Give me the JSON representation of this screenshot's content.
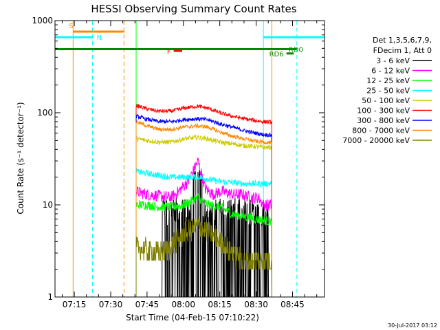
{
  "chart_data": {
    "type": "line",
    "title": "HESSI Observing Summary Count Rates",
    "xlabel": "Start Time (04-Feb-15 07:10:22)",
    "ylabel": "Count Rate (s⁻¹ detector⁻¹)",
    "yscale": "log",
    "ylim": [
      1,
      1000
    ],
    "xlim_minutes": [
      7.03,
      118.2
    ],
    "x_ticks": [
      {
        "label": "07:15",
        "minute": 15
      },
      {
        "label": "07:30",
        "minute": 30
      },
      {
        "label": "07:45",
        "minute": 45
      },
      {
        "label": "08:00",
        "minute": 60
      },
      {
        "label": "08:15",
        "minute": 75
      },
      {
        "label": "08:30",
        "minute": 90
      },
      {
        "label": "08:45",
        "minute": 105
      }
    ],
    "y_ticks": [
      "1",
      "10",
      "100",
      "1000"
    ],
    "legend_header": [
      "Det 1,3,5,6,7,9,",
      "FDecim 1, Att 0"
    ],
    "legend_placement": "right",
    "data_interval_minutes": [
      40.5,
      96.5
    ],
    "series": [
      {
        "name": "3 - 6 keV",
        "color": "#000000",
        "approx": [
          [
            40.5,
            0.5
          ],
          [
            55,
            0.5
          ],
          [
            58,
            0.5
          ],
          [
            63,
            0.5
          ],
          [
            66,
            0.5
          ],
          [
            69,
            0.5
          ],
          [
            72,
            0.5
          ],
          [
            80,
            0.5
          ],
          [
            88,
            0.5
          ],
          [
            91,
            0.5
          ],
          [
            93,
            0.5
          ],
          [
            96.5,
            0.5
          ]
        ]
      },
      {
        "name": "6 - 12 keV",
        "color": "#ff00ff",
        "approx": [
          [
            40.5,
            14
          ],
          [
            45,
            13
          ],
          [
            50,
            12.5
          ],
          [
            55,
            12
          ],
          [
            58,
            14
          ],
          [
            62,
            18
          ],
          [
            66,
            30
          ],
          [
            69,
            15
          ],
          [
            72,
            13
          ],
          [
            76,
            14
          ],
          [
            80,
            13
          ],
          [
            84,
            13
          ],
          [
            88,
            12
          ],
          [
            91,
            12
          ],
          [
            93,
            10
          ],
          [
            96.5,
            10
          ]
        ]
      },
      {
        "name": "12 - 25 keV",
        "color": "#00ff00",
        "approx": [
          [
            40.5,
            10
          ],
          [
            45,
            10
          ],
          [
            50,
            9.5
          ],
          [
            55,
            9.5
          ],
          [
            60,
            10
          ],
          [
            66,
            12
          ],
          [
            70,
            10
          ],
          [
            75,
            9.5
          ],
          [
            80,
            8
          ],
          [
            85,
            7.5
          ],
          [
            90,
            7
          ],
          [
            93,
            6.8
          ],
          [
            96.5,
            6.6
          ]
        ]
      },
      {
        "name": "25 - 50 keV",
        "color": "#00ffff",
        "approx": [
          [
            40.5,
            23
          ],
          [
            45,
            22
          ],
          [
            50,
            21
          ],
          [
            55,
            20
          ],
          [
            60,
            20
          ],
          [
            66,
            20
          ],
          [
            70,
            19
          ],
          [
            75,
            18
          ],
          [
            80,
            17.5
          ],
          [
            85,
            17
          ],
          [
            90,
            17
          ],
          [
            93,
            17
          ],
          [
            96.5,
            17
          ]
        ]
      },
      {
        "name": "50 - 100 keV",
        "color": "#cccc00",
        "approx": [
          [
            40.5,
            52
          ],
          [
            45,
            50
          ],
          [
            50,
            48
          ],
          [
            55,
            48
          ],
          [
            60,
            52
          ],
          [
            66,
            54
          ],
          [
            70,
            52
          ],
          [
            75,
            48
          ],
          [
            80,
            46
          ],
          [
            85,
            44
          ],
          [
            90,
            43
          ],
          [
            93,
            42
          ],
          [
            96.5,
            42
          ]
        ]
      },
      {
        "name": "100 - 300 keV",
        "color": "#ff0000",
        "approx": [
          [
            40.5,
            120
          ],
          [
            45,
            110
          ],
          [
            50,
            104
          ],
          [
            55,
            104
          ],
          [
            60,
            112
          ],
          [
            66,
            118
          ],
          [
            70,
            112
          ],
          [
            75,
            100
          ],
          [
            80,
            92
          ],
          [
            85,
            86
          ],
          [
            90,
            82
          ],
          [
            93,
            80
          ],
          [
            96.5,
            79
          ]
        ]
      },
      {
        "name": "300 - 800 keV",
        "color": "#0000ff",
        "approx": [
          [
            40.5,
            92
          ],
          [
            45,
            85
          ],
          [
            50,
            80
          ],
          [
            55,
            80
          ],
          [
            60,
            84
          ],
          [
            66,
            86
          ],
          [
            70,
            84
          ],
          [
            75,
            76
          ],
          [
            80,
            70
          ],
          [
            85,
            64
          ],
          [
            90,
            60
          ],
          [
            93,
            58
          ],
          [
            96.5,
            57
          ]
        ]
      },
      {
        "name": "800 - 7000 keV",
        "color": "#ff8800",
        "approx": [
          [
            40.5,
            80
          ],
          [
            45,
            72
          ],
          [
            50,
            66
          ],
          [
            55,
            66
          ],
          [
            60,
            70
          ],
          [
            66,
            72
          ],
          [
            70,
            70
          ],
          [
            75,
            62
          ],
          [
            80,
            56
          ],
          [
            85,
            52
          ],
          [
            90,
            49
          ],
          [
            93,
            48
          ],
          [
            96.5,
            47
          ]
        ]
      },
      {
        "name": "7000 - 20000 keV",
        "color": "#808000",
        "approx": [
          [
            40.5,
            3.5
          ],
          [
            45,
            3.2
          ],
          [
            50,
            3.0
          ],
          [
            55,
            3.6
          ],
          [
            60,
            4.8
          ],
          [
            66,
            6
          ],
          [
            70,
            5
          ],
          [
            75,
            4
          ],
          [
            80,
            3
          ],
          [
            85,
            2.5
          ],
          [
            90,
            2.5
          ],
          [
            93,
            2.5
          ],
          [
            96.5,
            2.5
          ]
        ]
      }
    ],
    "annotations": [
      {
        "label": "S",
        "color": "#ff8800"
      },
      {
        "label": "N",
        "color": "#00ffff"
      },
      {
        "label": "F",
        "color": "#ff0000"
      },
      {
        "label": "RD0",
        "color": "#008800"
      },
      {
        "label": "RD6",
        "color": "#008800"
      }
    ],
    "markers": [
      {
        "kind": "vertical-solid",
        "minute": 14.5,
        "color": "#ff8800"
      },
      {
        "kind": "vertical-dashed",
        "minute": 22.5,
        "color": "#00ffff"
      },
      {
        "kind": "vertical-dashed",
        "minute": 35.5,
        "color": "#ff8800"
      },
      {
        "kind": "vertical-solid",
        "minute": 40.5,
        "color": "#00ff00"
      },
      {
        "kind": "vertical-solid",
        "minute": 93.0,
        "color": "#00ffff"
      },
      {
        "kind": "vertical-dashed",
        "minute": 106.8,
        "color": "#00ffff"
      },
      {
        "kind": "vertical-solid",
        "minute": 96.5,
        "color": "#ff8800"
      }
    ],
    "bars": [
      {
        "kind": "saa-night",
        "label": "N",
        "color": "#00ffff",
        "from_minute": 7.03,
        "to_minute": 22.5,
        "level": 660
      },
      {
        "kind": "saa-night",
        "label": "N",
        "color": "#00ffff",
        "from_minute": 93.0,
        "to_minute": 118.2,
        "level": 660
      },
      {
        "kind": "saa",
        "label": "S",
        "color": "#ff8800",
        "from_minute": 14.5,
        "to_minute": 35.5,
        "level": 760
      },
      {
        "kind": "flare",
        "label": "F",
        "color": "#ff0000",
        "from_minute": 56.0,
        "to_minute": 59.5,
        "level": 470
      },
      {
        "kind": "rd0",
        "label": "RD0",
        "color": "#008800",
        "from_minute": 7.03,
        "to_minute": 106.8,
        "level": 490
      },
      {
        "kind": "rd6",
        "label": "RD6",
        "color": "#008800",
        "from_minute": 102.5,
        "to_minute": 105.5,
        "level": 440
      }
    ],
    "footer_date": "30-Jul-2017 03:12",
    "grid": false
  }
}
